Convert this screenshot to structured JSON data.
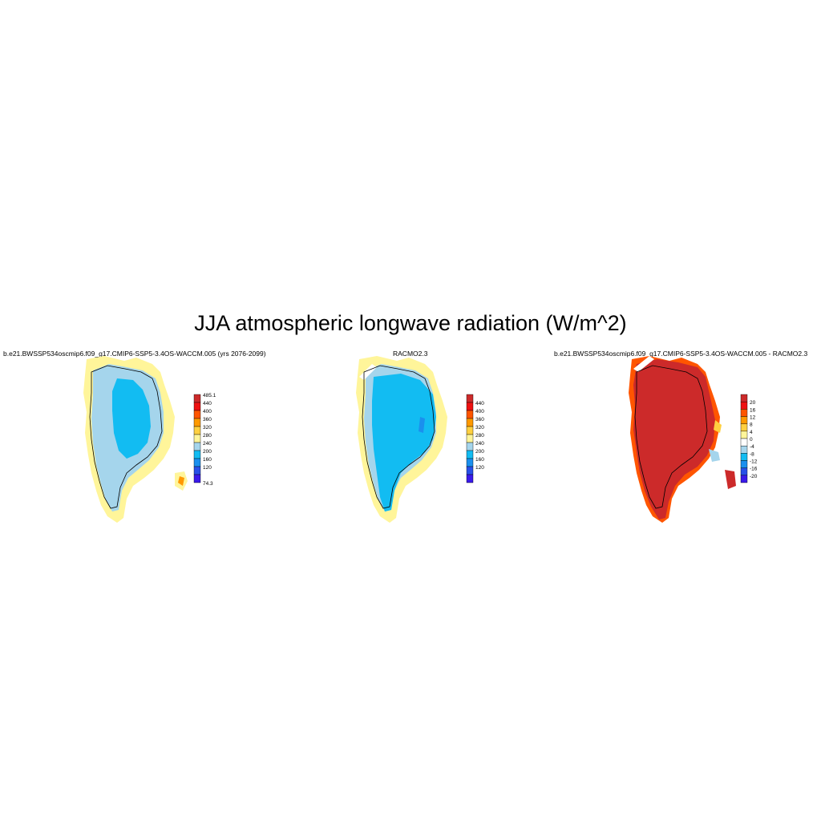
{
  "figure": {
    "title": "JJA atmospheric longwave radiation (W/m^2)"
  },
  "chart_data": [
    {
      "type": "heatmap",
      "title": "b.e21.BWSSP534oscmip6.f09_g17.CMIP6-SSP5-3.4OS-WACCM.005 (yrs 2076-2099)",
      "colorbar": {
        "labels": [
          "485.1",
          "440",
          "400",
          "360",
          "320",
          "280",
          "240",
          "200",
          "160",
          "120",
          "74.3"
        ],
        "colors": [
          "#cc2a2a",
          "#ee1111",
          "#ff5500",
          "#ff9900",
          "#ffd040",
          "#fff59a",
          "#a5d5ec",
          "#12bcf2",
          "#1a90ee",
          "#2850e8",
          "#3a1aea"
        ]
      },
      "zones": {
        "margin": "#fff59a",
        "inner": "#a5d5ec",
        "core": "#12bcf2",
        "hot": "#ff9900"
      }
    },
    {
      "type": "heatmap",
      "title": "RACMO2.3",
      "colorbar": {
        "labels": [
          "440",
          "400",
          "360",
          "320",
          "280",
          "240",
          "200",
          "160",
          "120"
        ],
        "colors": [
          "#cc2a2a",
          "#ee1111",
          "#ff5500",
          "#ff9900",
          "#ffd040",
          "#fff59a",
          "#a5d5ec",
          "#12bcf2",
          "#1a90ee",
          "#2850e8",
          "#3a1aea"
        ]
      },
      "zones": {
        "margin": "#fff59a",
        "inner": "#a5d5ec",
        "core": "#12bcf2",
        "streak": "#1a90ee"
      }
    },
    {
      "type": "heatmap",
      "title": "b.e21.BWSSP534oscmip6.f09_g17.CMIP6-SSP5-3.4OS-WACCM.005 - RACMO2.3",
      "colorbar": {
        "labels": [
          "20",
          "16",
          "12",
          "8",
          "4",
          "0",
          "-4",
          "-8",
          "-12",
          "-16",
          "-20"
        ],
        "colors": [
          "#cc2a2a",
          "#ee1111",
          "#ff5500",
          "#ff9900",
          "#ffd040",
          "#fff59a",
          "#ffffff",
          "#a5d5ec",
          "#12bcf2",
          "#1a90ee",
          "#2850e8",
          "#3a1aea"
        ]
      },
      "zones": {
        "margin": "#ff5500",
        "inner": "#cc2a2a",
        "edge_cool": "#a5d5ec",
        "edge_warm": "#ffd040"
      }
    }
  ]
}
